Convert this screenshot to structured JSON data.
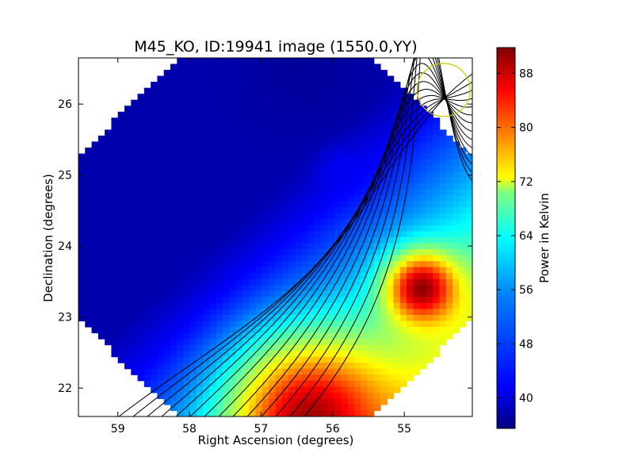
{
  "chart_data": {
    "type": "heatmap",
    "title": "M45_KO, ID:19941 image (1550.0,YY)",
    "xlabel": "Right Ascension (degrees)",
    "ylabel": "Declination (degrees)",
    "xlim": [
      59.55,
      54.05
    ],
    "ylim": [
      21.6,
      26.65
    ],
    "xticks": [
      "59",
      "58",
      "57",
      "56",
      "55"
    ],
    "yticks": [
      "22",
      "23",
      "24",
      "25",
      "26"
    ],
    "colorbar": {
      "label": "Power in Kelvin",
      "range": [
        35.5,
        91.8
      ],
      "ticks": [
        "40",
        "48",
        "56",
        "64",
        "72",
        "80",
        "88"
      ],
      "colormap": [
        "#00007f",
        "#0000ff",
        "#00ffff",
        "#ffff00",
        "#ff0000",
        "#7f0000"
      ]
    },
    "field_of_view": "diamond",
    "sources": [
      {
        "ra": 56.3,
        "dec": 21.55,
        "value": 90,
        "sigma": 0.75
      },
      {
        "ra": 54.75,
        "dec": 23.4,
        "value": 91,
        "sigma": 0.35
      },
      {
        "ra": 56.4,
        "dec": 26.55,
        "value": 37,
        "sigma": 0.6
      },
      {
        "ra": 55.85,
        "dec": 25.05,
        "value": 42,
        "sigma": 0.25
      }
    ],
    "background_description": "power increases toward lower-right (low RA, low Dec); ~38-42 K in upper-left, ~80-88 K in lower-right",
    "beam_marker": {
      "ra": 54.45,
      "dec": 26.2,
      "radius_deg": 0.37,
      "color": "#c8c800"
    }
  }
}
